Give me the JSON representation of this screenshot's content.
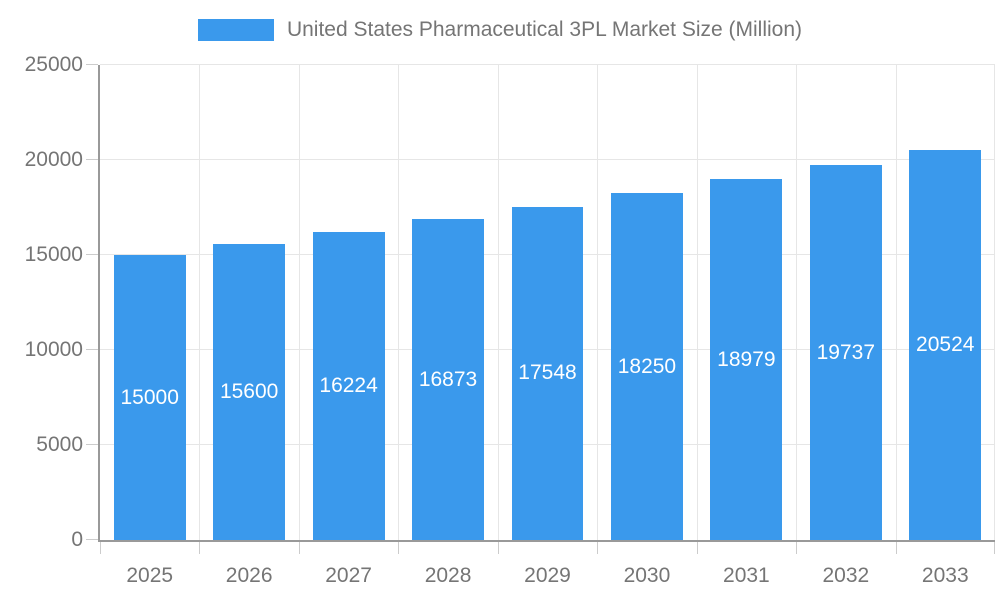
{
  "chart_data": {
    "type": "bar",
    "title": "United States Pharmaceutical 3PL Market Size (Million)",
    "categories": [
      "2025",
      "2026",
      "2027",
      "2028",
      "2029",
      "2030",
      "2031",
      "2032",
      "2033"
    ],
    "values": [
      15000,
      15600,
      16224,
      16873,
      17548,
      18250,
      18979,
      19737,
      20524
    ],
    "xlabel": "",
    "ylabel": "",
    "ylim": [
      0,
      25000
    ],
    "yticks": [
      0,
      5000,
      10000,
      15000,
      20000,
      25000
    ],
    "grid": true,
    "legend_position": "top-center",
    "bar_labels_inside": true,
    "colors": {
      "bar": "#3A99EC",
      "bar_label": "#FFFFFF",
      "axis_text": "#757575",
      "axis_line": "#999999",
      "gridline": "#E6E6E6",
      "tick": "#CCCCCC",
      "background": "#FFFFFF"
    }
  }
}
